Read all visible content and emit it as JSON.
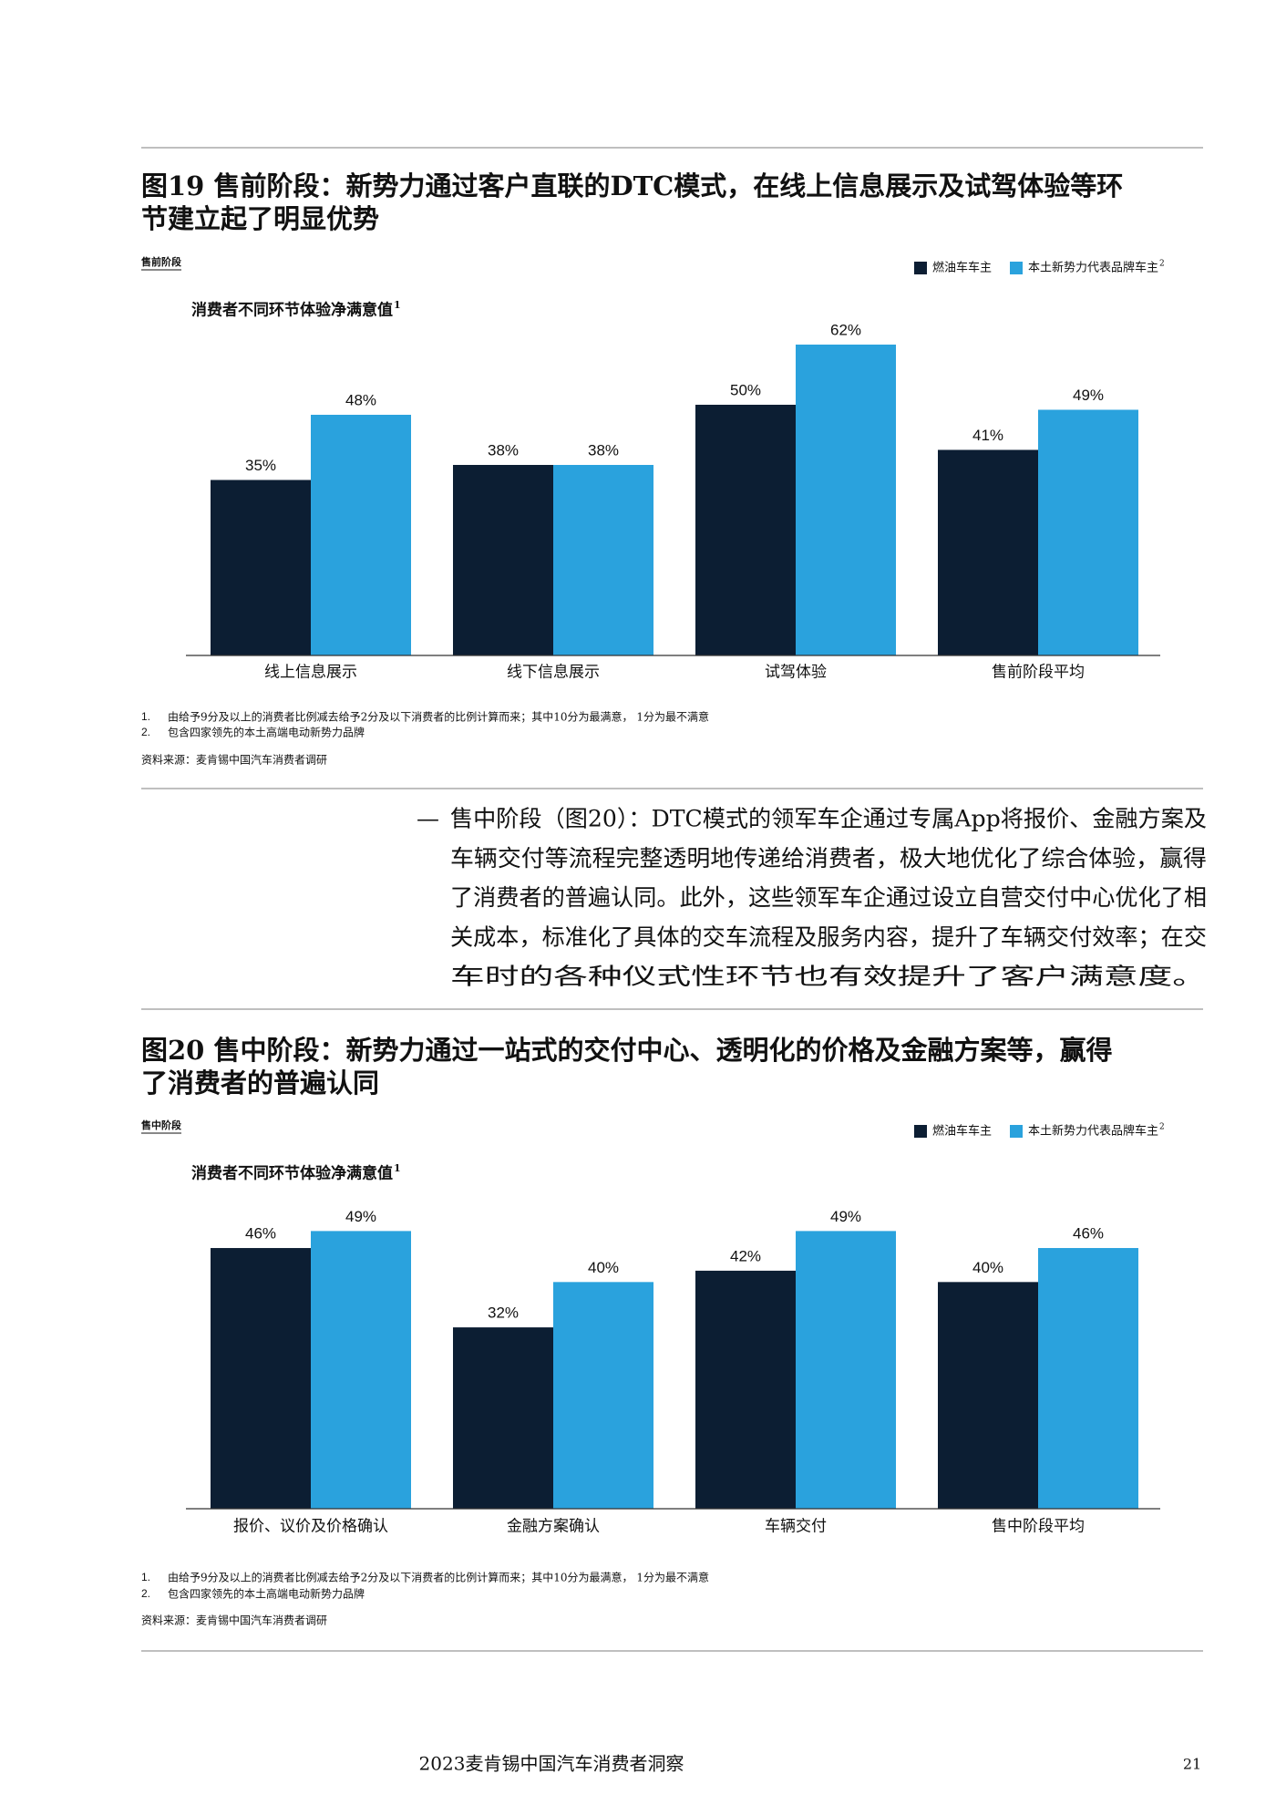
{
  "chart_data": [
    {
      "type": "bar",
      "title_lines": [
        "图19 售前阶段：新势力通过客户直联的DTC模式，在线上信息展示及试驾体验等环",
        "节建立起了明显优势"
      ],
      "section_label": "售前阶段",
      "subtitle": "消费者不同环节体验净满意值",
      "subtitle_note": "1",
      "categories": [
        "线上信息展示",
        "线下信息展示",
        "试驾体验",
        "售前阶段平均"
      ],
      "series": [
        {
          "name": "燃油车车主",
          "color": "#0c1e33",
          "values": [
            35,
            38,
            50,
            41
          ],
          "value_labels": [
            "35%",
            "38%",
            "50%",
            "41%"
          ]
        },
        {
          "name": "本土新势力代表品牌车主",
          "name_note": "2",
          "color": "#2aa2dd",
          "values": [
            48,
            38,
            62,
            49
          ],
          "value_labels": [
            "48%",
            "38%",
            "62%",
            "49%"
          ]
        }
      ],
      "ylim": [
        0,
        70
      ],
      "notes": [
        {
          "number": "1.",
          "text": "由给予9分及以上的消费者比例减去给予2分及以下消费者的比例计算而来；其中10分为最满意， 1分为最不满意"
        },
        {
          "number": "2.",
          "text": "包含四家领先的本土高端电动新势力品牌"
        }
      ],
      "source": "资料来源：麦肯锡中国汽车消费者调研"
    },
    {
      "type": "bar",
      "title_lines": [
        "图20 售中阶段：新势力通过一站式的交付中心、透明化的价格及金融方案等，赢得",
        "了消费者的普遍认同"
      ],
      "section_label": "售中阶段",
      "subtitle": "消费者不同环节体验净满意值",
      "subtitle_note": "1",
      "categories": [
        "报价、议价及价格确认",
        "金融方案确认",
        "车辆交付",
        "售中阶段平均"
      ],
      "series": [
        {
          "name": "燃油车车主",
          "color": "#0c1e33",
          "values": [
            46,
            32,
            42,
            40
          ],
          "value_labels": [
            "46%",
            "32%",
            "42%",
            "40%"
          ]
        },
        {
          "name": "本土新势力代表品牌车主",
          "name_note": "2",
          "color": "#2aa2dd",
          "values": [
            49,
            40,
            49,
            46
          ],
          "value_labels": [
            "49%",
            "40%",
            "49%",
            "46%"
          ]
        }
      ],
      "ylim": [
        0,
        60
      ],
      "notes": [
        {
          "number": "1.",
          "text": "由给予9分及以上的消费者比例减去给予2分及以下消费者的比例计算而来；其中10分为最满意， 1分为最不满意"
        },
        {
          "number": "2.",
          "text": "包含四家领先的本土高端电动新势力品牌"
        }
      ],
      "source": "资料来源：麦肯锡中国汽车消费者调研"
    }
  ],
  "body_lines": [
    "售中阶段（图20）：DTC模式的领军车企通过专属App将报价、金融方案及",
    "车辆交付等流程完整透明地传递给消费者，极大地优化了综合体验，赢得",
    "了消费者的普遍认同。此外，这些领军车企通过设立自营交付中心优化了相",
    "关成本，标准化了具体的交车流程及服务内容，提升了车辆交付效率；在交",
    "车时的各种仪式性环节也有效提升了客户满意度。"
  ],
  "footer": "2023麦肯锡中国汽车消费者洞察",
  "page_number": "21"
}
